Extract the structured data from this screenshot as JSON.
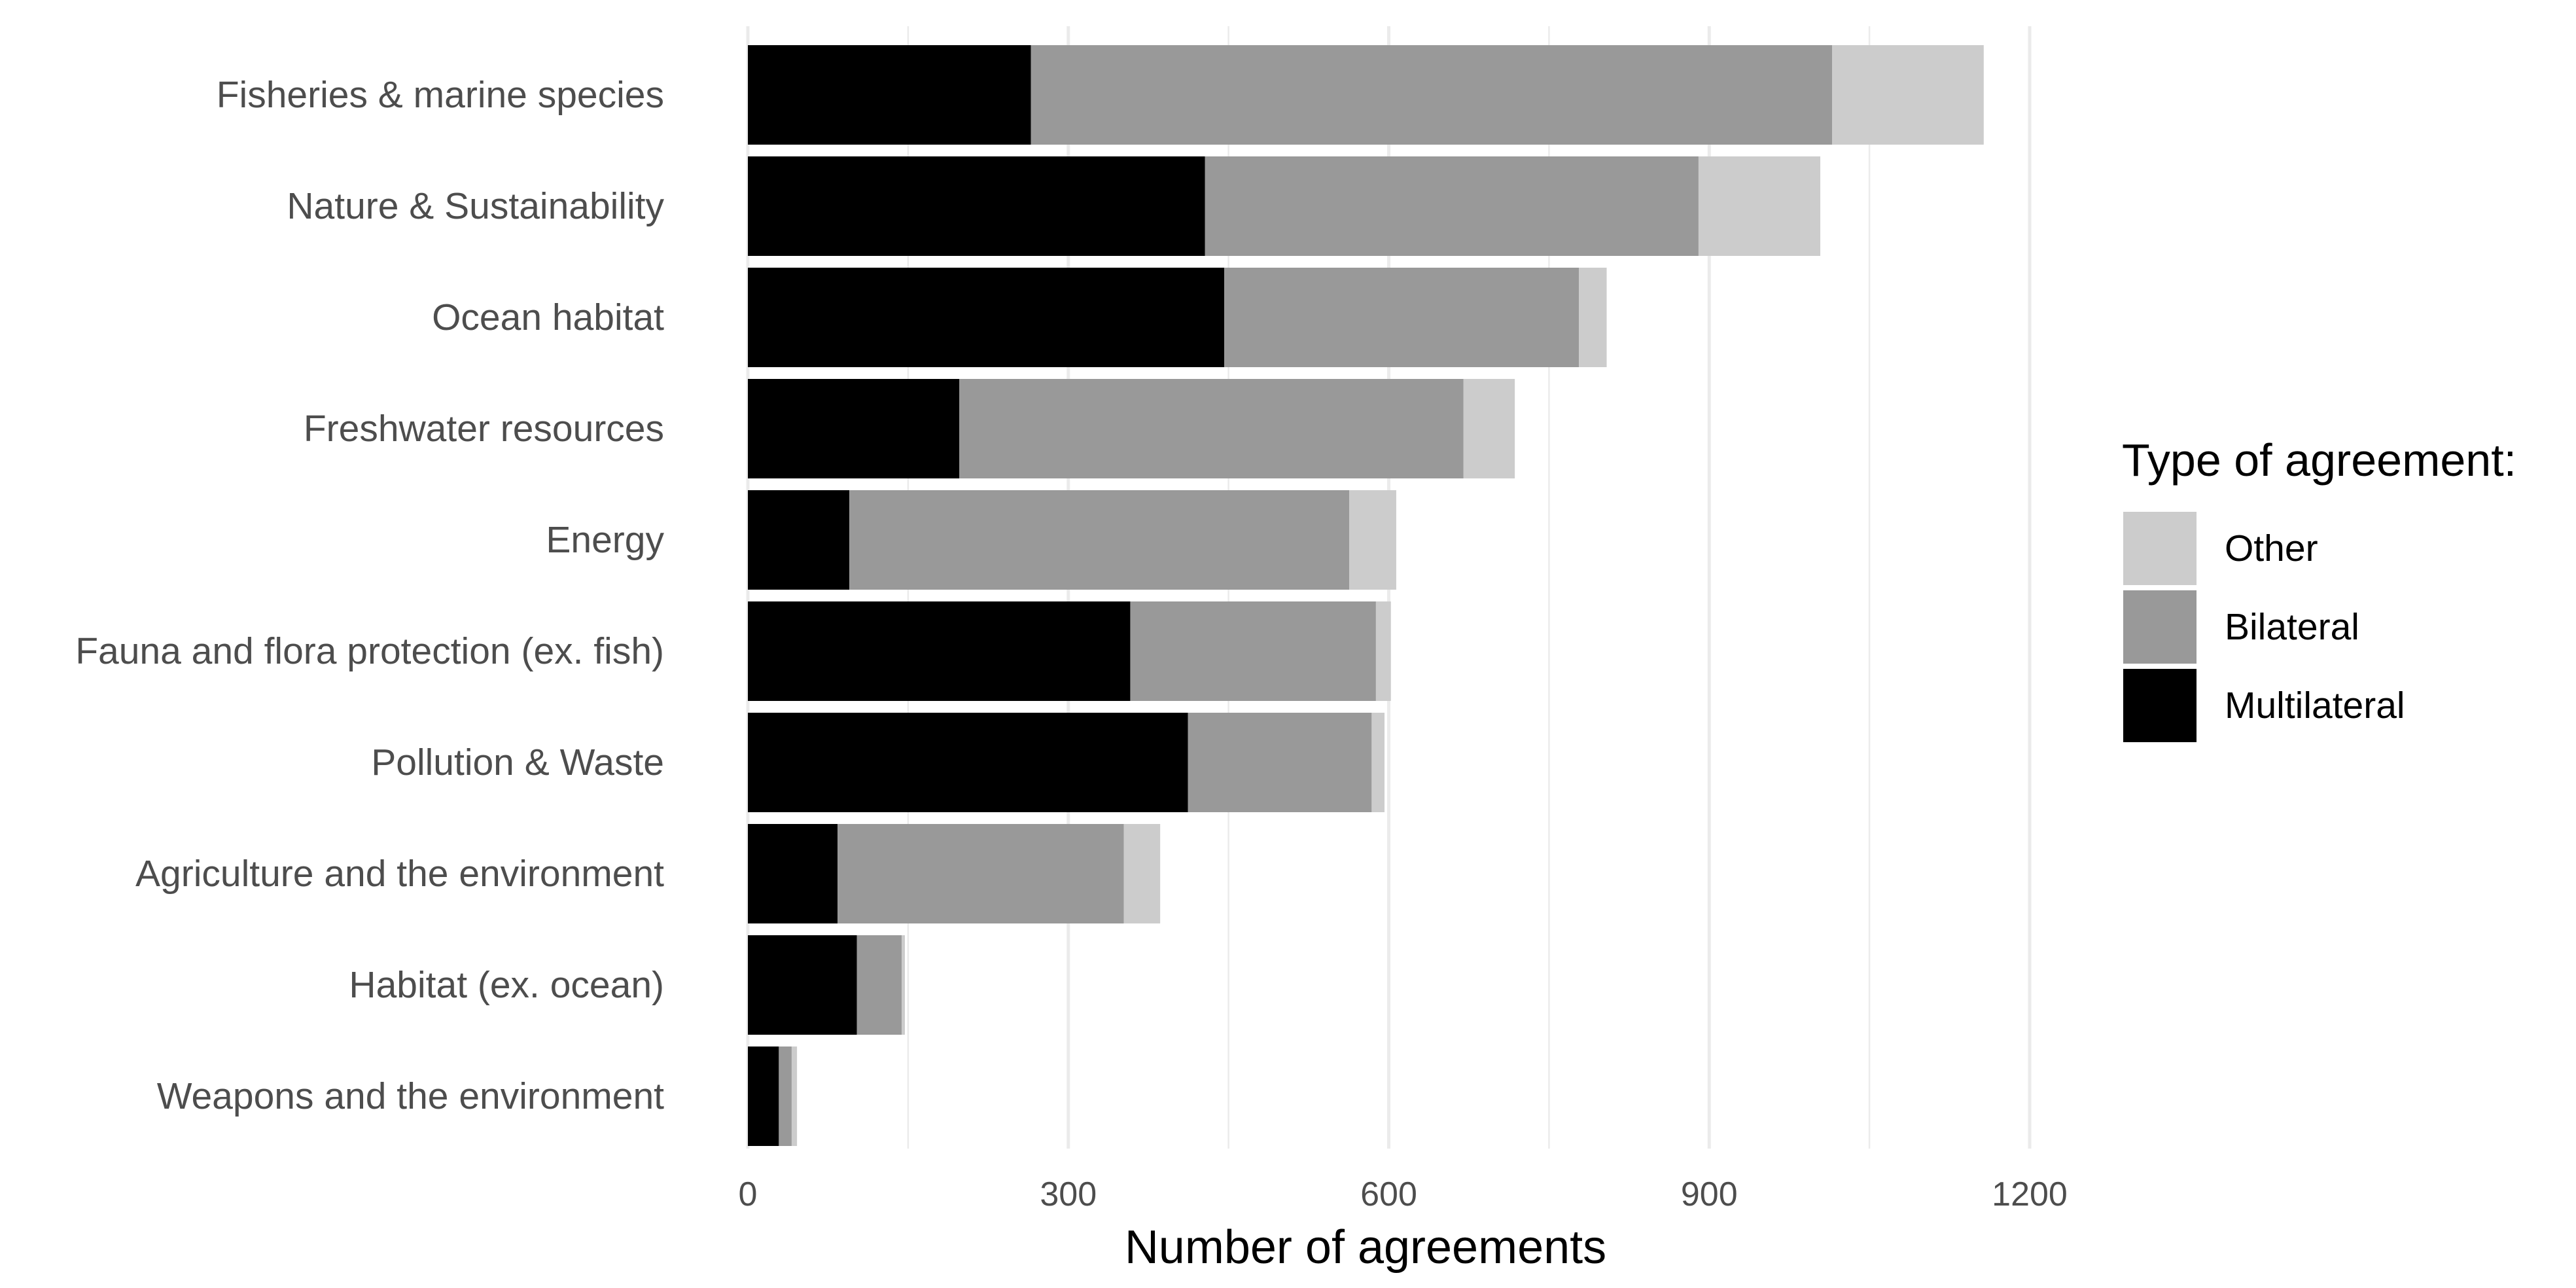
{
  "chart_data": {
    "type": "bar",
    "orientation": "horizontal",
    "stacked": true,
    "title": "",
    "xlabel": "Number of agreements",
    "ylabel": "",
    "xlim": [
      0,
      1200
    ],
    "x_ticks": [
      0,
      300,
      600,
      900,
      1200
    ],
    "grid": true,
    "categories": [
      "Fisheries & marine species",
      "Nature & Sustainability",
      "Ocean habitat",
      "Freshwater resources",
      "Energy",
      "Fauna and flora protection (ex. fish)",
      "Pollution & Waste",
      "Agriculture and the environment",
      "Habitat (ex. ocean)",
      "Weapons and the environment"
    ],
    "series": [
      {
        "name": "Multilateral",
        "color": "#000000",
        "values": [
          265,
          428,
          446,
          198,
          95,
          358,
          412,
          84,
          102,
          29
        ]
      },
      {
        "name": "Bilateral",
        "color": "#999999",
        "values": [
          750,
          462,
          332,
          472,
          468,
          230,
          172,
          268,
          42,
          12
        ]
      },
      {
        "name": "Other",
        "color": "#cccccc",
        "values": [
          142,
          114,
          26,
          48,
          44,
          14,
          12,
          34,
          3,
          5
        ]
      }
    ],
    "legend": {
      "title": "Type of agreement:",
      "placement": "right",
      "entries": [
        "Other",
        "Bilateral",
        "Multilateral"
      ]
    }
  }
}
